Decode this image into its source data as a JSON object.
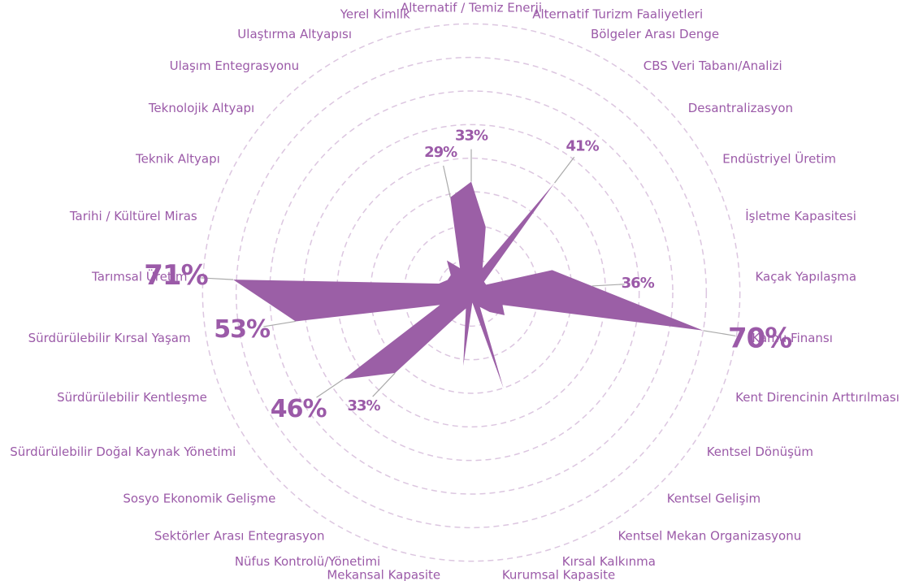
{
  "chart_data": {
    "type": "radar",
    "categories": [
      "Alternatif / Temiz Enerji",
      "Alternatif Turizm Faaliyetleri",
      "Bölgeler Arası Denge",
      "CBS Veri Tabanı/Analizi",
      "Desantralizasyon",
      "Endüstriyel Üretim",
      "İşletme Kapasitesi",
      "Kaçak Yapılaşma",
      "Kamu Finansı",
      "Kent Direncinin Arttırılması",
      "Kentsel Dönüşüm",
      "Kentsel Gelişim",
      "Kentsel Mekan Organizasyonu",
      "Kırsal Kalkınma",
      "Kurumsal Kapasite",
      "Mekansal Kapasite",
      "Nüfus Kontrolü/Yönetimi",
      "Sektörler Arası Entegrasyon",
      "Sosyo Ekonomik Gelişme",
      "Sürdürülebilir Doğal Kaynak Yönetimi",
      "Sürdürülebilir Kentleşme",
      "Sürdürülebilir Kırsal Yaşam",
      "Tarımsal Üretim",
      "Tarihi / Kültürel Miras",
      "Teknik Altyapı",
      "Teknolojik Altyapı",
      "Ulaşım Entegrasyonu",
      "Ulaştırma Altyapısı",
      "Yerel Kimlik"
    ],
    "values": [
      33,
      20,
      8,
      41,
      5,
      5,
      25,
      36,
      70,
      10,
      12,
      8,
      5,
      30,
      3,
      22,
      5,
      8,
      33,
      46,
      10,
      53,
      71,
      10,
      8,
      8,
      12,
      8,
      29
    ],
    "value_labels": [
      "33%",
      null,
      null,
      "41%",
      null,
      null,
      null,
      "36%",
      "70%",
      null,
      null,
      null,
      null,
      null,
      null,
      null,
      null,
      null,
      "33%",
      "46%",
      null,
      "53%",
      "71%",
      null,
      null,
      null,
      null,
      null,
      "29%"
    ],
    "color": "#9b5fa6",
    "rlim": [
      0,
      75
    ],
    "rticks": [
      10,
      20,
      30,
      40,
      50,
      60,
      70,
      80
    ],
    "grid": true
  }
}
